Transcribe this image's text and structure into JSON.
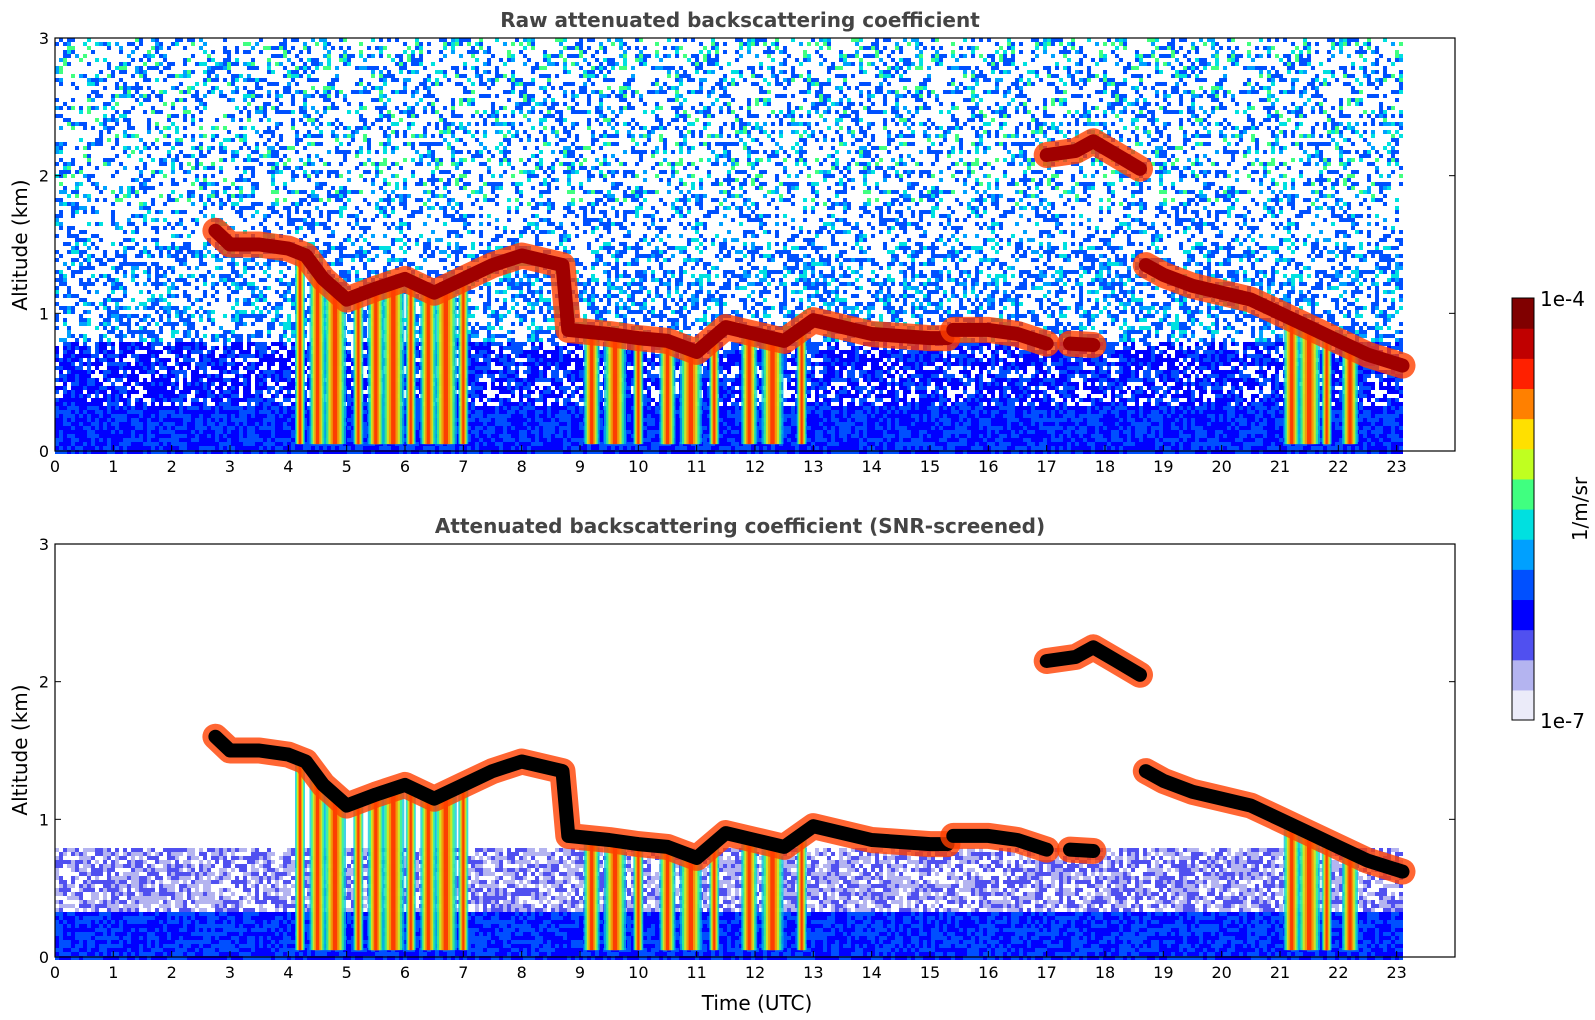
{
  "chart_data": [
    {
      "type": "heatmap",
      "title": "Raw attenuated backscattering coefficient",
      "xlabel": "",
      "ylabel": "Altitude (km)",
      "xlim": [
        0,
        24
      ],
      "ylim": [
        0,
        3
      ],
      "x_ticks": [
        "0",
        "1",
        "2",
        "3",
        "4",
        "5",
        "6",
        "7",
        "8",
        "9",
        "10",
        "11",
        "12",
        "13",
        "14",
        "15",
        "16",
        "17",
        "18",
        "19",
        "20",
        "21",
        "22",
        "23"
      ],
      "y_ticks": [
        "0",
        "1",
        "2",
        "3"
      ],
      "data_extent_hours": [
        0,
        23.1
      ],
      "screened": false,
      "cloud_layer": [
        [
          2.75,
          1.6
        ],
        [
          3.0,
          1.5
        ],
        [
          3.5,
          1.5
        ],
        [
          4.0,
          1.47
        ],
        [
          4.3,
          1.42
        ],
        [
          4.6,
          1.25
        ],
        [
          5.0,
          1.1
        ],
        [
          5.5,
          1.18
        ],
        [
          6.0,
          1.25
        ],
        [
          6.5,
          1.15
        ],
        [
          7.0,
          1.25
        ],
        [
          7.5,
          1.35
        ],
        [
          8.0,
          1.42
        ],
        [
          8.7,
          1.35
        ],
        [
          8.8,
          0.88
        ],
        [
          9.5,
          0.85
        ],
        [
          10.0,
          0.82
        ],
        [
          10.5,
          0.8
        ],
        [
          11.0,
          0.72
        ],
        [
          11.5,
          0.9
        ],
        [
          12.0,
          0.85
        ],
        [
          12.5,
          0.8
        ],
        [
          13.0,
          0.95
        ],
        [
          14.0,
          0.85
        ],
        [
          15.0,
          0.82
        ],
        [
          15.3,
          0.82
        ]
      ],
      "cloud_layer_2": [
        [
          15.4,
          0.88
        ],
        [
          16.0,
          0.88
        ],
        [
          16.5,
          0.85
        ],
        [
          17.0,
          0.78
        ]
      ],
      "cloud_layer_3": [
        [
          17.4,
          0.78
        ],
        [
          17.8,
          0.77
        ]
      ],
      "cloud_layer_4": [
        [
          18.7,
          1.35
        ],
        [
          19.0,
          1.28
        ],
        [
          19.5,
          1.2
        ],
        [
          20.0,
          1.15
        ],
        [
          20.5,
          1.1
        ],
        [
          21.0,
          1.0
        ],
        [
          21.5,
          0.9
        ],
        [
          22.0,
          0.8
        ],
        [
          22.5,
          0.7
        ],
        [
          23.1,
          0.62
        ]
      ],
      "upper_cloud": [
        [
          17.0,
          2.15
        ],
        [
          17.5,
          2.18
        ],
        [
          17.8,
          2.25
        ],
        [
          18.2,
          2.15
        ],
        [
          18.6,
          2.05
        ]
      ],
      "fall_streaks_hours": [
        4.2,
        4.5,
        4.8,
        5.2,
        5.5,
        5.8,
        6.1,
        6.4,
        6.7,
        7.0,
        9.2,
        9.6,
        10.0,
        10.5,
        10.9,
        11.3,
        11.9,
        12.3,
        12.8,
        21.2,
        21.5,
        21.8,
        22.2
      ]
    },
    {
      "type": "heatmap",
      "title": "Attenuated backscattering coefficient (SNR-screened)",
      "xlabel": "Time (UTC)",
      "ylabel": "Altitude (km)",
      "xlim": [
        0,
        24
      ],
      "ylim": [
        0,
        3
      ],
      "x_ticks": [
        "0",
        "1",
        "2",
        "3",
        "4",
        "5",
        "6",
        "7",
        "8",
        "9",
        "10",
        "11",
        "12",
        "13",
        "14",
        "15",
        "16",
        "17",
        "18",
        "19",
        "20",
        "21",
        "22",
        "23"
      ],
      "y_ticks": [
        "0",
        "1",
        "2",
        "3"
      ],
      "data_extent_hours": [
        0,
        23.1
      ],
      "screened": true
    }
  ],
  "colorbar": {
    "max_label": "1e-4",
    "min_label": "1e-7",
    "unit_label": "1/m/sr",
    "scale": "log",
    "colors": [
      "#ebebf9",
      "#b4b4f0",
      "#5050f0",
      "#0000ff",
      "#0050ff",
      "#00a0ff",
      "#00e0e0",
      "#40ff80",
      "#c0ff20",
      "#ffe000",
      "#ff8000",
      "#ff2000",
      "#c00000",
      "#800000"
    ]
  }
}
